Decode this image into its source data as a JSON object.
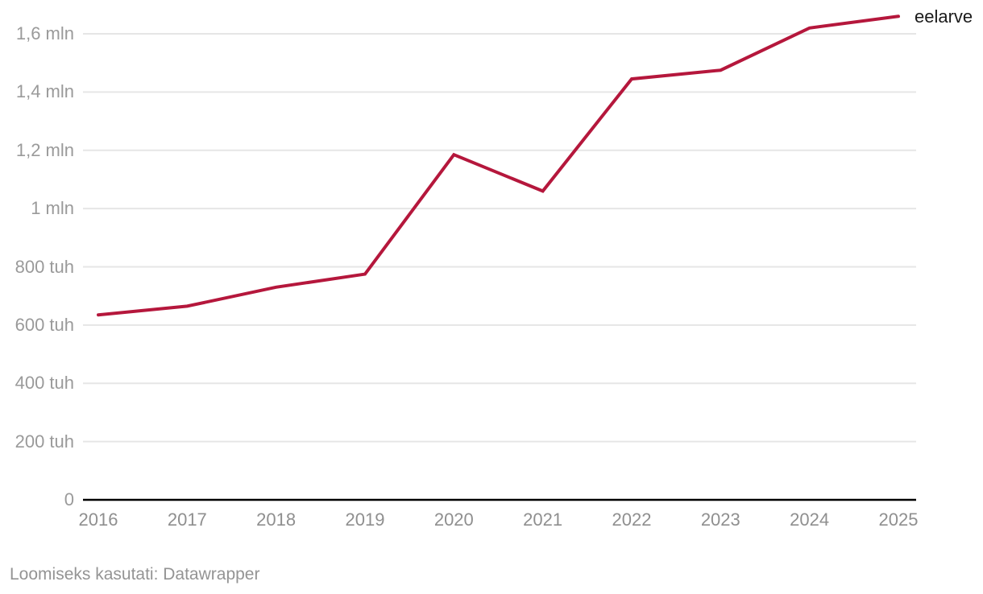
{
  "chart_data": {
    "type": "line",
    "title": "",
    "xlabel": "",
    "ylabel": "",
    "categories": [
      "2016",
      "2017",
      "2018",
      "2019",
      "2020",
      "2021",
      "2022",
      "2023",
      "2024",
      "2025"
    ],
    "series": [
      {
        "name": "eelarve",
        "color": "#b5173c",
        "values": [
          635000,
          665000,
          730000,
          775000,
          1185000,
          1060000,
          1445000,
          1475000,
          1620000,
          1660000
        ]
      }
    ],
    "y_ticks": [
      {
        "value": 0,
        "label": "0"
      },
      {
        "value": 200000,
        "label": "200 tuh"
      },
      {
        "value": 400000,
        "label": "400 tuh"
      },
      {
        "value": 600000,
        "label": "600 tuh"
      },
      {
        "value": 800000,
        "label": "800 tuh"
      },
      {
        "value": 1000000,
        "label": "1 mln"
      },
      {
        "value": 1200000,
        "label": "1,2 mln"
      },
      {
        "value": 1400000,
        "label": "1,4 mln"
      },
      {
        "value": 1600000,
        "label": "1,6 mln"
      }
    ],
    "ylim": [
      0,
      1700000
    ],
    "grid": "horizontal",
    "legend_position": "end-of-line"
  },
  "footer": {
    "attribution": "Loomiseks kasutati: Datawrapper"
  },
  "colors": {
    "line": "#b5173c",
    "grid": "#e6e6e6",
    "axis": "#000000",
    "y_tick_text": "#9a9a9a",
    "x_tick_text": "#8f8f8f",
    "series_label_text": "#1a1a1a",
    "footer_text": "#949494",
    "background": "#ffffff"
  }
}
